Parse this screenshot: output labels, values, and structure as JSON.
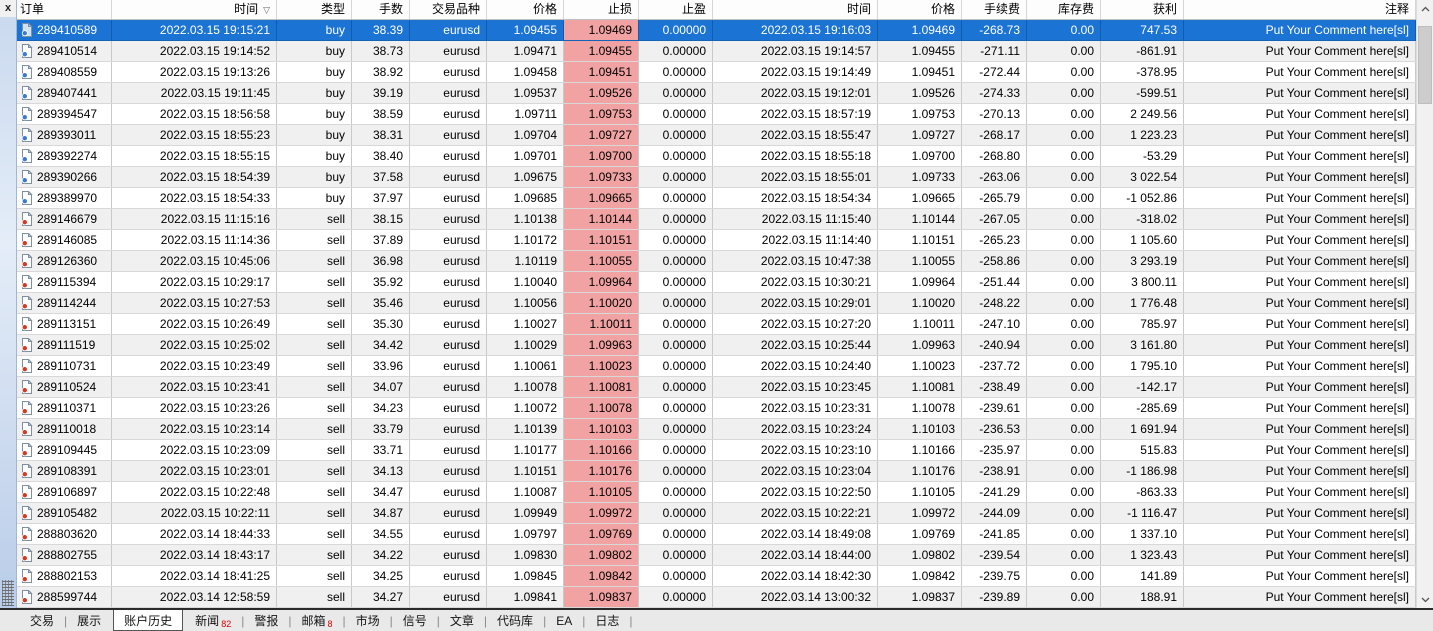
{
  "panel": {
    "close_label": "x"
  },
  "colors": {
    "selection": "#1b74d3",
    "sl_highlight": "#f0a3a2",
    "row_alt": "#f0f0f0",
    "row_bg": "#ffffff",
    "badge": "#e00000",
    "buy_dot": "#3b7ad1",
    "sell_dot": "#d23a22"
  },
  "table": {
    "sort_indicator": "▽",
    "columns": [
      {
        "key": "order",
        "label": "订单",
        "align": "left"
      },
      {
        "key": "open-time",
        "label": "时间",
        "align": "right",
        "sorted": true
      },
      {
        "key": "type",
        "label": "类型",
        "align": "right"
      },
      {
        "key": "lots",
        "label": "手数",
        "align": "right"
      },
      {
        "key": "symbol",
        "label": "交易品种",
        "align": "right"
      },
      {
        "key": "open-price",
        "label": "价格",
        "align": "right"
      },
      {
        "key": "sl",
        "label": "止损",
        "align": "right"
      },
      {
        "key": "tp",
        "label": "止盈",
        "align": "right"
      },
      {
        "key": "close-time",
        "label": "时间",
        "align": "right"
      },
      {
        "key": "close-price",
        "label": "价格",
        "align": "right"
      },
      {
        "key": "commission",
        "label": "手续费",
        "align": "right"
      },
      {
        "key": "swap",
        "label": "库存费",
        "align": "right"
      },
      {
        "key": "profit",
        "label": "获利",
        "align": "right"
      },
      {
        "key": "comment",
        "label": "注释",
        "align": "right"
      }
    ],
    "rows": [
      {
        "order": "289410589",
        "open_time": "2022.03.15 19:15:21",
        "type": "buy",
        "lots": "38.39",
        "symbol": "eurusd",
        "open_price": "1.09455",
        "sl": "1.09469",
        "tp": "0.00000",
        "close_time": "2022.03.15 19:16:03",
        "close_price": "1.09469",
        "commission": "-268.73",
        "swap": "0.00",
        "profit": "747.53",
        "comment": "Put Your Comment here[sl]",
        "selected": true
      },
      {
        "order": "289410514",
        "open_time": "2022.03.15 19:14:52",
        "type": "buy",
        "lots": "38.73",
        "symbol": "eurusd",
        "open_price": "1.09471",
        "sl": "1.09455",
        "tp": "0.00000",
        "close_time": "2022.03.15 19:14:57",
        "close_price": "1.09455",
        "commission": "-271.11",
        "swap": "0.00",
        "profit": "-861.91",
        "comment": "Put Your Comment here[sl]"
      },
      {
        "order": "289408559",
        "open_time": "2022.03.15 19:13:26",
        "type": "buy",
        "lots": "38.92",
        "symbol": "eurusd",
        "open_price": "1.09458",
        "sl": "1.09451",
        "tp": "0.00000",
        "close_time": "2022.03.15 19:14:49",
        "close_price": "1.09451",
        "commission": "-272.44",
        "swap": "0.00",
        "profit": "-378.95",
        "comment": "Put Your Comment here[sl]"
      },
      {
        "order": "289407441",
        "open_time": "2022.03.15 19:11:45",
        "type": "buy",
        "lots": "39.19",
        "symbol": "eurusd",
        "open_price": "1.09537",
        "sl": "1.09526",
        "tp": "0.00000",
        "close_time": "2022.03.15 19:12:01",
        "close_price": "1.09526",
        "commission": "-274.33",
        "swap": "0.00",
        "profit": "-599.51",
        "comment": "Put Your Comment here[sl]"
      },
      {
        "order": "289394547",
        "open_time": "2022.03.15 18:56:58",
        "type": "buy",
        "lots": "38.59",
        "symbol": "eurusd",
        "open_price": "1.09711",
        "sl": "1.09753",
        "tp": "0.00000",
        "close_time": "2022.03.15 18:57:19",
        "close_price": "1.09753",
        "commission": "-270.13",
        "swap": "0.00",
        "profit": "2 249.56",
        "comment": "Put Your Comment here[sl]"
      },
      {
        "order": "289393011",
        "open_time": "2022.03.15 18:55:23",
        "type": "buy",
        "lots": "38.31",
        "symbol": "eurusd",
        "open_price": "1.09704",
        "sl": "1.09727",
        "tp": "0.00000",
        "close_time": "2022.03.15 18:55:47",
        "close_price": "1.09727",
        "commission": "-268.17",
        "swap": "0.00",
        "profit": "1 223.23",
        "comment": "Put Your Comment here[sl]"
      },
      {
        "order": "289392274",
        "open_time": "2022.03.15 18:55:15",
        "type": "buy",
        "lots": "38.40",
        "symbol": "eurusd",
        "open_price": "1.09701",
        "sl": "1.09700",
        "tp": "0.00000",
        "close_time": "2022.03.15 18:55:18",
        "close_price": "1.09700",
        "commission": "-268.80",
        "swap": "0.00",
        "profit": "-53.29",
        "comment": "Put Your Comment here[sl]"
      },
      {
        "order": "289390266",
        "open_time": "2022.03.15 18:54:39",
        "type": "buy",
        "lots": "37.58",
        "symbol": "eurusd",
        "open_price": "1.09675",
        "sl": "1.09733",
        "tp": "0.00000",
        "close_time": "2022.03.15 18:55:01",
        "close_price": "1.09733",
        "commission": "-263.06",
        "swap": "0.00",
        "profit": "3 022.54",
        "comment": "Put Your Comment here[sl]"
      },
      {
        "order": "289389970",
        "open_time": "2022.03.15 18:54:33",
        "type": "buy",
        "lots": "37.97",
        "symbol": "eurusd",
        "open_price": "1.09685",
        "sl": "1.09665",
        "tp": "0.00000",
        "close_time": "2022.03.15 18:54:34",
        "close_price": "1.09665",
        "commission": "-265.79",
        "swap": "0.00",
        "profit": "-1 052.86",
        "comment": "Put Your Comment here[sl]"
      },
      {
        "order": "289146679",
        "open_time": "2022.03.15 11:15:16",
        "type": "sell",
        "lots": "38.15",
        "symbol": "eurusd",
        "open_price": "1.10138",
        "sl": "1.10144",
        "tp": "0.00000",
        "close_time": "2022.03.15 11:15:40",
        "close_price": "1.10144",
        "commission": "-267.05",
        "swap": "0.00",
        "profit": "-318.02",
        "comment": "Put Your Comment here[sl]"
      },
      {
        "order": "289146085",
        "open_time": "2022.03.15 11:14:36",
        "type": "sell",
        "lots": "37.89",
        "symbol": "eurusd",
        "open_price": "1.10172",
        "sl": "1.10151",
        "tp": "0.00000",
        "close_time": "2022.03.15 11:14:40",
        "close_price": "1.10151",
        "commission": "-265.23",
        "swap": "0.00",
        "profit": "1 105.60",
        "comment": "Put Your Comment here[sl]"
      },
      {
        "order": "289126360",
        "open_time": "2022.03.15 10:45:06",
        "type": "sell",
        "lots": "36.98",
        "symbol": "eurusd",
        "open_price": "1.10119",
        "sl": "1.10055",
        "tp": "0.00000",
        "close_time": "2022.03.15 10:47:38",
        "close_price": "1.10055",
        "commission": "-258.86",
        "swap": "0.00",
        "profit": "3 293.19",
        "comment": "Put Your Comment here[sl]"
      },
      {
        "order": "289115394",
        "open_time": "2022.03.15 10:29:17",
        "type": "sell",
        "lots": "35.92",
        "symbol": "eurusd",
        "open_price": "1.10040",
        "sl": "1.09964",
        "tp": "0.00000",
        "close_time": "2022.03.15 10:30:21",
        "close_price": "1.09964",
        "commission": "-251.44",
        "swap": "0.00",
        "profit": "3 800.11",
        "comment": "Put Your Comment here[sl]"
      },
      {
        "order": "289114244",
        "open_time": "2022.03.15 10:27:53",
        "type": "sell",
        "lots": "35.46",
        "symbol": "eurusd",
        "open_price": "1.10056",
        "sl": "1.10020",
        "tp": "0.00000",
        "close_time": "2022.03.15 10:29:01",
        "close_price": "1.10020",
        "commission": "-248.22",
        "swap": "0.00",
        "profit": "1 776.48",
        "comment": "Put Your Comment here[sl]"
      },
      {
        "order": "289113151",
        "open_time": "2022.03.15 10:26:49",
        "type": "sell",
        "lots": "35.30",
        "symbol": "eurusd",
        "open_price": "1.10027",
        "sl": "1.10011",
        "tp": "0.00000",
        "close_time": "2022.03.15 10:27:20",
        "close_price": "1.10011",
        "commission": "-247.10",
        "swap": "0.00",
        "profit": "785.97",
        "comment": "Put Your Comment here[sl]"
      },
      {
        "order": "289111519",
        "open_time": "2022.03.15 10:25:02",
        "type": "sell",
        "lots": "34.42",
        "symbol": "eurusd",
        "open_price": "1.10029",
        "sl": "1.09963",
        "tp": "0.00000",
        "close_time": "2022.03.15 10:25:44",
        "close_price": "1.09963",
        "commission": "-240.94",
        "swap": "0.00",
        "profit": "3 161.80",
        "comment": "Put Your Comment here[sl]"
      },
      {
        "order": "289110731",
        "open_time": "2022.03.15 10:23:49",
        "type": "sell",
        "lots": "33.96",
        "symbol": "eurusd",
        "open_price": "1.10061",
        "sl": "1.10023",
        "tp": "0.00000",
        "close_time": "2022.03.15 10:24:40",
        "close_price": "1.10023",
        "commission": "-237.72",
        "swap": "0.00",
        "profit": "1 795.10",
        "comment": "Put Your Comment here[sl]"
      },
      {
        "order": "289110524",
        "open_time": "2022.03.15 10:23:41",
        "type": "sell",
        "lots": "34.07",
        "symbol": "eurusd",
        "open_price": "1.10078",
        "sl": "1.10081",
        "tp": "0.00000",
        "close_time": "2022.03.15 10:23:45",
        "close_price": "1.10081",
        "commission": "-238.49",
        "swap": "0.00",
        "profit": "-142.17",
        "comment": "Put Your Comment here[sl]"
      },
      {
        "order": "289110371",
        "open_time": "2022.03.15 10:23:26",
        "type": "sell",
        "lots": "34.23",
        "symbol": "eurusd",
        "open_price": "1.10072",
        "sl": "1.10078",
        "tp": "0.00000",
        "close_time": "2022.03.15 10:23:31",
        "close_price": "1.10078",
        "commission": "-239.61",
        "swap": "0.00",
        "profit": "-285.69",
        "comment": "Put Your Comment here[sl]"
      },
      {
        "order": "289110018",
        "open_time": "2022.03.15 10:23:14",
        "type": "sell",
        "lots": "33.79",
        "symbol": "eurusd",
        "open_price": "1.10139",
        "sl": "1.10103",
        "tp": "0.00000",
        "close_time": "2022.03.15 10:23:24",
        "close_price": "1.10103",
        "commission": "-236.53",
        "swap": "0.00",
        "profit": "1 691.94",
        "comment": "Put Your Comment here[sl]"
      },
      {
        "order": "289109445",
        "open_time": "2022.03.15 10:23:09",
        "type": "sell",
        "lots": "33.71",
        "symbol": "eurusd",
        "open_price": "1.10177",
        "sl": "1.10166",
        "tp": "0.00000",
        "close_time": "2022.03.15 10:23:10",
        "close_price": "1.10166",
        "commission": "-235.97",
        "swap": "0.00",
        "profit": "515.83",
        "comment": "Put Your Comment here[sl]"
      },
      {
        "order": "289108391",
        "open_time": "2022.03.15 10:23:01",
        "type": "sell",
        "lots": "34.13",
        "symbol": "eurusd",
        "open_price": "1.10151",
        "sl": "1.10176",
        "tp": "0.00000",
        "close_time": "2022.03.15 10:23:04",
        "close_price": "1.10176",
        "commission": "-238.91",
        "swap": "0.00",
        "profit": "-1 186.98",
        "comment": "Put Your Comment here[sl]"
      },
      {
        "order": "289106897",
        "open_time": "2022.03.15 10:22:48",
        "type": "sell",
        "lots": "34.47",
        "symbol": "eurusd",
        "open_price": "1.10087",
        "sl": "1.10105",
        "tp": "0.00000",
        "close_time": "2022.03.15 10:22:50",
        "close_price": "1.10105",
        "commission": "-241.29",
        "swap": "0.00",
        "profit": "-863.33",
        "comment": "Put Your Comment here[sl]"
      },
      {
        "order": "289105482",
        "open_time": "2022.03.15 10:22:11",
        "type": "sell",
        "lots": "34.87",
        "symbol": "eurusd",
        "open_price": "1.09949",
        "sl": "1.09972",
        "tp": "0.00000",
        "close_time": "2022.03.15 10:22:21",
        "close_price": "1.09972",
        "commission": "-244.09",
        "swap": "0.00",
        "profit": "-1 116.47",
        "comment": "Put Your Comment here[sl]"
      },
      {
        "order": "288803620",
        "open_time": "2022.03.14 18:44:33",
        "type": "sell",
        "lots": "34.55",
        "symbol": "eurusd",
        "open_price": "1.09797",
        "sl": "1.09769",
        "tp": "0.00000",
        "close_time": "2022.03.14 18:49:08",
        "close_price": "1.09769",
        "commission": "-241.85",
        "swap": "0.00",
        "profit": "1 337.10",
        "comment": "Put Your Comment here[sl]"
      },
      {
        "order": "288802755",
        "open_time": "2022.03.14 18:43:17",
        "type": "sell",
        "lots": "34.22",
        "symbol": "eurusd",
        "open_price": "1.09830",
        "sl": "1.09802",
        "tp": "0.00000",
        "close_time": "2022.03.14 18:44:00",
        "close_price": "1.09802",
        "commission": "-239.54",
        "swap": "0.00",
        "profit": "1 323.43",
        "comment": "Put Your Comment here[sl]"
      },
      {
        "order": "288802153",
        "open_time": "2022.03.14 18:41:25",
        "type": "sell",
        "lots": "34.25",
        "symbol": "eurusd",
        "open_price": "1.09845",
        "sl": "1.09842",
        "tp": "0.00000",
        "close_time": "2022.03.14 18:42:30",
        "close_price": "1.09842",
        "commission": "-239.75",
        "swap": "0.00",
        "profit": "141.89",
        "comment": "Put Your Comment here[sl]"
      },
      {
        "order": "288599744",
        "open_time": "2022.03.14 12:58:59",
        "type": "sell",
        "lots": "34.27",
        "symbol": "eurusd",
        "open_price": "1.09841",
        "sl": "1.09837",
        "tp": "0.00000",
        "close_time": "2022.03.14 13:00:32",
        "close_price": "1.09837",
        "commission": "-239.89",
        "swap": "0.00",
        "profit": "188.91",
        "comment": "Put Your Comment here[sl]"
      }
    ]
  },
  "tabs": [
    {
      "key": "trade",
      "label": "交易"
    },
    {
      "key": "exposure",
      "label": "展示"
    },
    {
      "key": "account-history",
      "label": "账户历史",
      "active": true
    },
    {
      "key": "news",
      "label": "新闻",
      "badge": "82"
    },
    {
      "key": "alerts",
      "label": "警报"
    },
    {
      "key": "mailbox",
      "label": "邮箱",
      "badge": "8"
    },
    {
      "key": "market",
      "label": "市场"
    },
    {
      "key": "signals",
      "label": "信号"
    },
    {
      "key": "articles",
      "label": "文章"
    },
    {
      "key": "codebase",
      "label": "代码库"
    },
    {
      "key": "ea",
      "label": "EA"
    },
    {
      "key": "journal",
      "label": "日志"
    }
  ]
}
